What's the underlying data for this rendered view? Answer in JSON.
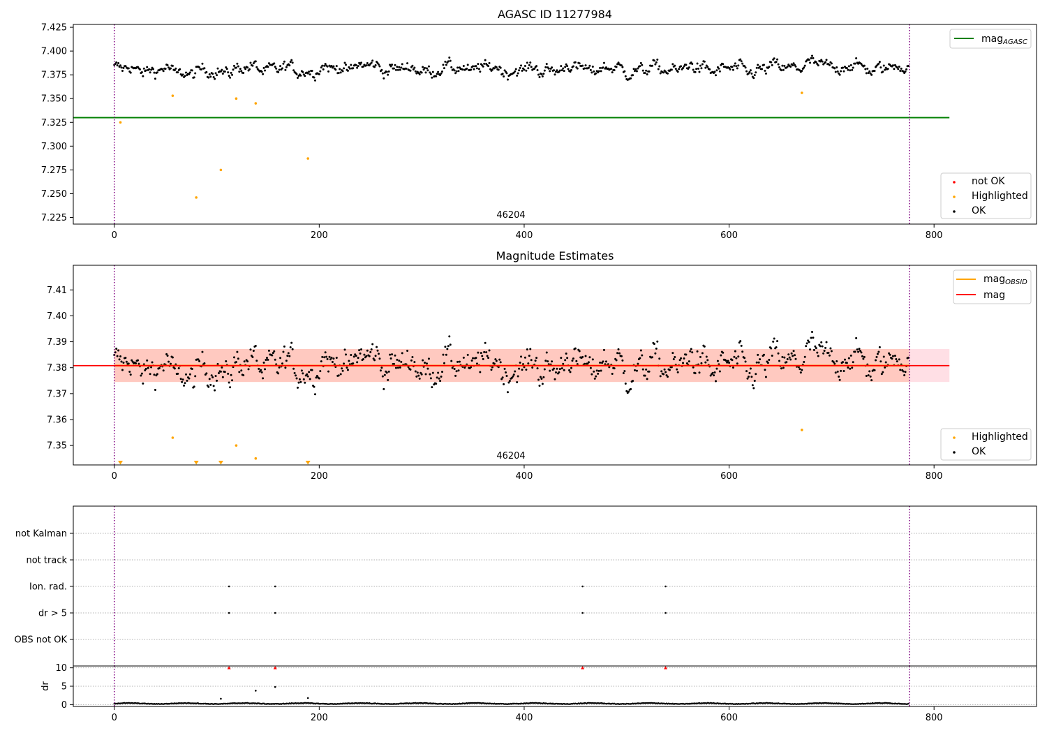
{
  "chart_data": [
    {
      "type": "scatter",
      "title": "AGASC ID 11277984",
      "xlim": [
        -40,
        900
      ],
      "ylim": [
        7.218,
        7.428
      ],
      "x_ticks": [
        0,
        200,
        400,
        600,
        800
      ],
      "y_ticks": [
        7.225,
        7.25,
        7.275,
        7.3,
        7.325,
        7.35,
        7.375,
        7.4,
        7.425
      ],
      "y_tick_labels": [
        "7.225",
        "7.250",
        "7.275",
        "7.300",
        "7.325",
        "7.350",
        "7.375",
        "7.400",
        "7.425"
      ],
      "annotation": "46204",
      "annotation_x": 388,
      "vlines": [
        0,
        776
      ],
      "hline": {
        "name": "mag",
        "subscript": "AGASC",
        "value": 7.33,
        "xmax": 815,
        "color": "#008000"
      },
      "ok_series": {
        "name": "OK",
        "color": "#000000",
        "n": 776,
        "center": 7.381,
        "amplitude": 0.007
      },
      "highlighted": {
        "name": "Highlighted",
        "color": "#ffa500",
        "x": [
          6,
          57,
          80,
          104,
          119,
          138,
          189,
          671
        ],
        "y": [
          7.325,
          7.353,
          7.246,
          7.275,
          7.35,
          7.345,
          7.287,
          7.356
        ]
      },
      "not_ok": {
        "name": "not OK",
        "color": "#ff0000"
      },
      "legend_line_position": "upper-right",
      "legend_points_position": "lower-right",
      "legend_points": [
        "not OK",
        "Highlighted",
        "OK"
      ]
    },
    {
      "type": "scatter",
      "title": "Magnitude Estimates",
      "xlim": [
        -40,
        900
      ],
      "ylim": [
        7.3425,
        7.4195
      ],
      "x_ticks": [
        0,
        200,
        400,
        600,
        800
      ],
      "y_ticks": [
        7.35,
        7.36,
        7.37,
        7.38,
        7.39,
        7.4,
        7.41
      ],
      "y_tick_labels": [
        "7.35",
        "7.36",
        "7.37",
        "7.38",
        "7.39",
        "7.40",
        "7.41"
      ],
      "annotation": "46204",
      "annotation_x": 388,
      "vlines": [
        0,
        776
      ],
      "mag_line": {
        "name": "mag",
        "value": 7.3808,
        "color": "#ff0000",
        "band_low": 7.3745,
        "band_high": 7.3872,
        "xmax": 815
      },
      "obsid_line": {
        "name": "mag",
        "subscript": "OBSID",
        "value": 7.3808,
        "color": "#ffa500",
        "xmax": 776
      },
      "ok_series": {
        "name": "OK",
        "color": "#000000",
        "n": 776,
        "center": 7.3808,
        "amplitude": 0.0065
      },
      "highlighted": {
        "name": "Highlighted",
        "color": "#ffa500",
        "x": [
          57,
          119,
          138,
          671
        ],
        "y": [
          7.353,
          7.35,
          7.345,
          7.356
        ]
      },
      "off_scale_markers": {
        "color": "#ffa500",
        "x": [
          6,
          80,
          104,
          189
        ]
      },
      "legend_line_position": "upper-right",
      "legend_points_position": "lower-right",
      "legend_points": [
        "Highlighted",
        "OK"
      ]
    },
    {
      "type": "scatter",
      "xlim": [
        -40,
        900
      ],
      "x_ticks": [
        0,
        200,
        400,
        600,
        800
      ],
      "categories": [
        "not Kalman",
        "not track",
        "Ion. rad.",
        "dr > 5",
        "OBS not OK"
      ],
      "flags": {
        "Ion. rad.": [
          112,
          157,
          457,
          538
        ],
        "dr > 5": [
          112,
          157,
          457,
          538
        ]
      },
      "vlines": [
        0,
        776
      ]
    },
    {
      "type": "scatter",
      "ylabel": "dr",
      "xlim": [
        -40,
        900
      ],
      "ylim": [
        -0.5,
        10.5
      ],
      "x_ticks": [
        0,
        200,
        400,
        600,
        800
      ],
      "y_ticks": [
        0,
        5,
        10
      ],
      "y_tick_labels": [
        "0",
        "5",
        "10"
      ],
      "baseline": {
        "n": 776,
        "typical": 0.3
      },
      "outliers": {
        "x": [
          104,
          138,
          157,
          189
        ],
        "y": [
          1.6,
          3.8,
          4.8,
          1.8
        ]
      },
      "capped": {
        "color": "#ff0000",
        "x": [
          112,
          157,
          457,
          538
        ],
        "y": 10
      },
      "vlines": [
        0,
        776
      ]
    }
  ]
}
